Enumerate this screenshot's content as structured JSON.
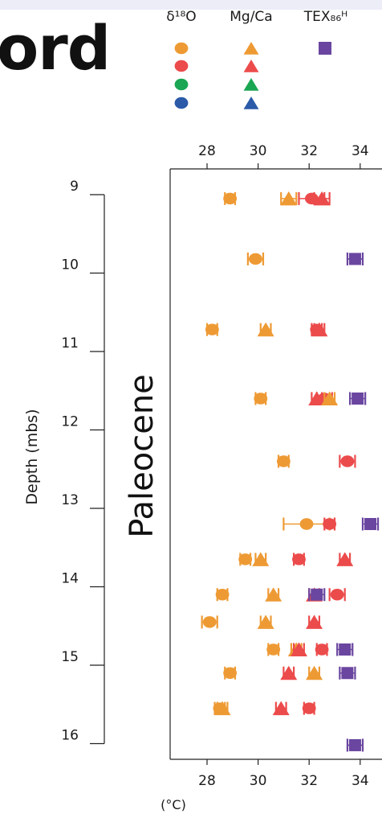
{
  "header": {
    "title": "ord"
  },
  "legend": {
    "headers": [
      "δ¹⁸O",
      "Mg/Ca",
      "TEX₈₆ᴴ"
    ],
    "colors": [
      "#ee9a34",
      "#ec4b4b",
      "#1aa653",
      "#2a5aa8"
    ],
    "tex_color": "#6a46a0"
  },
  "chart_data": {
    "type": "scatter",
    "xlabel": "(°C)",
    "ylabel": "Depth (mbs)",
    "section_label": "Paleocene",
    "xlim": [
      26.6,
      35.4
    ],
    "ylim": [
      8.75,
      16.3
    ],
    "xticks": [
      28,
      30,
      32,
      34
    ],
    "yticks": [
      9,
      10,
      11,
      12,
      13,
      14,
      15,
      16
    ],
    "colors": {
      "orange": "#ee9a34",
      "red": "#ec4b4b",
      "purple": "#6a46a0"
    },
    "points": [
      {
        "depth": 9.05,
        "temp": 28.9,
        "shape": "circle",
        "color": "orange",
        "err": 0.2
      },
      {
        "depth": 9.05,
        "temp": 31.2,
        "shape": "triangle",
        "color": "orange",
        "err": 0.3
      },
      {
        "depth": 9.05,
        "temp": 32.1,
        "shape": "circle",
        "color": "red",
        "err": 0.5
      },
      {
        "depth": 9.05,
        "temp": 32.5,
        "shape": "triangle",
        "color": "red",
        "err": 0.3
      },
      {
        "depth": 9.82,
        "temp": 29.9,
        "shape": "circle",
        "color": "orange",
        "err": 0.3
      },
      {
        "depth": 9.82,
        "temp": 33.8,
        "shape": "square",
        "color": "purple",
        "err": 0.3
      },
      {
        "depth": 10.72,
        "temp": 28.2,
        "shape": "circle",
        "color": "orange",
        "err": 0.2
      },
      {
        "depth": 10.72,
        "temp": 30.3,
        "shape": "triangle",
        "color": "orange",
        "err": 0.2
      },
      {
        "depth": 10.72,
        "temp": 32.3,
        "shape": "circle",
        "color": "red",
        "err": 0.2
      },
      {
        "depth": 10.72,
        "temp": 32.4,
        "shape": "triangle",
        "color": "red",
        "err": 0.2
      },
      {
        "depth": 11.6,
        "temp": 30.1,
        "shape": "circle",
        "color": "orange",
        "err": 0.2
      },
      {
        "depth": 11.6,
        "temp": 32.3,
        "shape": "triangle",
        "color": "red",
        "err": 0.2
      },
      {
        "depth": 11.6,
        "temp": 32.6,
        "shape": "circle",
        "color": "red",
        "err": 0.3
      },
      {
        "depth": 11.6,
        "temp": 32.8,
        "shape": "triangle",
        "color": "orange",
        "err": 0.2
      },
      {
        "depth": 11.6,
        "temp": 33.9,
        "shape": "square",
        "color": "purple",
        "err": 0.3
      },
      {
        "depth": 12.4,
        "temp": 31.0,
        "shape": "circle",
        "color": "orange",
        "err": 0.2
      },
      {
        "depth": 12.4,
        "temp": 33.5,
        "shape": "circle",
        "color": "red",
        "err": 0.3
      },
      {
        "depth": 13.2,
        "temp": 31.9,
        "shape": "circle",
        "color": "orange",
        "err": 0.9
      },
      {
        "depth": 13.2,
        "temp": 32.8,
        "shape": "circle",
        "color": "red",
        "err": 0.2
      },
      {
        "depth": 13.2,
        "temp": 34.4,
        "shape": "square",
        "color": "purple",
        "err": 0.3
      },
      {
        "depth": 13.65,
        "temp": 29.5,
        "shape": "circle",
        "color": "orange",
        "err": 0.2
      },
      {
        "depth": 13.65,
        "temp": 30.1,
        "shape": "triangle",
        "color": "orange",
        "err": 0.2
      },
      {
        "depth": 13.65,
        "temp": 31.6,
        "shape": "circle",
        "color": "red",
        "err": 0.2
      },
      {
        "depth": 13.65,
        "temp": 33.4,
        "shape": "triangle",
        "color": "red",
        "err": 0.2
      },
      {
        "depth": 14.1,
        "temp": 28.6,
        "shape": "circle",
        "color": "orange",
        "err": 0.2
      },
      {
        "depth": 14.1,
        "temp": 30.6,
        "shape": "triangle",
        "color": "orange",
        "err": 0.2
      },
      {
        "depth": 14.1,
        "temp": 32.2,
        "shape": "triangle",
        "color": "red",
        "err": 0.2
      },
      {
        "depth": 14.1,
        "temp": 32.3,
        "shape": "square",
        "color": "purple",
        "err": 0.3
      },
      {
        "depth": 14.1,
        "temp": 33.1,
        "shape": "circle",
        "color": "red",
        "err": 0.3
      },
      {
        "depth": 14.45,
        "temp": 28.1,
        "shape": "circle",
        "color": "orange",
        "err": 0.3
      },
      {
        "depth": 14.45,
        "temp": 30.3,
        "shape": "triangle",
        "color": "orange",
        "err": 0.2
      },
      {
        "depth": 14.45,
        "temp": 32.2,
        "shape": "triangle",
        "color": "red",
        "err": 0.2
      },
      {
        "depth": 14.8,
        "temp": 30.6,
        "shape": "circle",
        "color": "orange",
        "err": 0.2
      },
      {
        "depth": 14.8,
        "temp": 31.5,
        "shape": "triangle",
        "color": "orange",
        "err": 0.2
      },
      {
        "depth": 14.8,
        "temp": 31.6,
        "shape": "triangle",
        "color": "red",
        "err": 0.2
      },
      {
        "depth": 14.8,
        "temp": 32.5,
        "shape": "circle",
        "color": "red",
        "err": 0.2
      },
      {
        "depth": 14.8,
        "temp": 33.4,
        "shape": "square",
        "color": "purple",
        "err": 0.3
      },
      {
        "depth": 15.1,
        "temp": 28.9,
        "shape": "circle",
        "color": "orange",
        "err": 0.2
      },
      {
        "depth": 15.1,
        "temp": 31.2,
        "shape": "triangle",
        "color": "red",
        "err": 0.2
      },
      {
        "depth": 15.1,
        "temp": 32.2,
        "shape": "triangle",
        "color": "orange",
        "err": 0.2
      },
      {
        "depth": 15.1,
        "temp": 33.5,
        "shape": "square",
        "color": "purple",
        "err": 0.3
      },
      {
        "depth": 15.55,
        "temp": 28.5,
        "shape": "circle",
        "color": "orange",
        "err": 0.2
      },
      {
        "depth": 15.55,
        "temp": 28.6,
        "shape": "triangle",
        "color": "orange",
        "err": 0.2
      },
      {
        "depth": 15.55,
        "temp": 30.9,
        "shape": "triangle",
        "color": "red",
        "err": 0.2
      },
      {
        "depth": 15.55,
        "temp": 32.0,
        "shape": "circle",
        "color": "red",
        "err": 0.2
      },
      {
        "depth": 16.02,
        "temp": 33.8,
        "shape": "square",
        "color": "purple",
        "err": 0.3
      }
    ]
  }
}
